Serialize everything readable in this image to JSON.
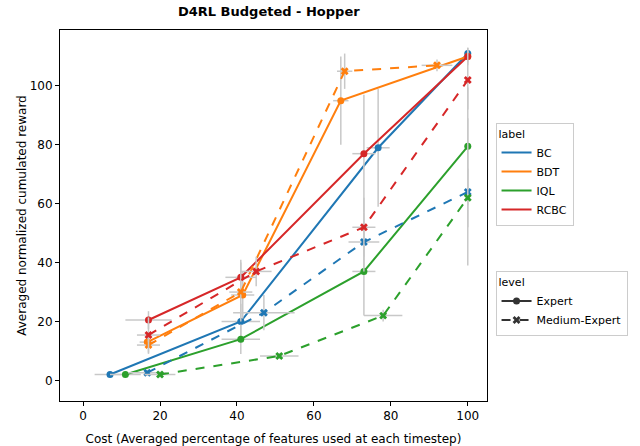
{
  "chart_data": {
    "type": "line",
    "title": "D4RL Budgeted - Hopper",
    "x_label": "Cost (Averaged percentage of features used at each timestep)",
    "y_label": "Averaged normalized cumulated reward",
    "xlim": [
      -6,
      105
    ],
    "ylim": [
      -7,
      119
    ],
    "xticks": [
      0,
      20,
      40,
      60,
      80,
      100
    ],
    "yticks": [
      0,
      20,
      40,
      60,
      80,
      100
    ],
    "grid": false,
    "legend_title": "label",
    "level_title": "level",
    "methods": [
      {
        "name": "BC",
        "color": "#1f77b4"
      },
      {
        "name": "BDT",
        "color": "#ff7f0e"
      },
      {
        "name": "IQL",
        "color": "#2ca02c"
      },
      {
        "name": "RCBC",
        "color": "#d62728"
      }
    ],
    "levels": [
      {
        "name": "Expert",
        "line_style": "solid",
        "marker": "circle"
      },
      {
        "name": "Medium-Expert",
        "line_style": "dash",
        "marker": "x"
      }
    ],
    "series": [
      {
        "name": "BC",
        "level": "Expert",
        "x": [
          7,
          41,
          76.7,
          100
        ],
        "values": [
          2,
          20,
          79,
          111
        ],
        "x_error": [
          4,
          5,
          3,
          0
        ],
        "y_error": [
          1,
          6,
          20,
          2
        ]
      },
      {
        "name": "BDT",
        "level": "Expert",
        "x": [
          16.7,
          41.5,
          67,
          100
        ],
        "values": [
          13,
          29,
          95,
          110
        ],
        "x_error": [
          2,
          3,
          2,
          0
        ],
        "y_error": [
          2,
          8,
          15,
          3
        ]
      },
      {
        "name": "IQL",
        "level": "Expert",
        "x": [
          11,
          41,
          73,
          100
        ],
        "values": [
          2,
          14,
          37,
          79.5
        ],
        "x_error": [
          4,
          5,
          3,
          0
        ],
        "y_error": [
          1,
          5,
          15,
          20
        ]
      },
      {
        "name": "RCBC",
        "level": "Expert",
        "x": [
          17,
          41,
          73,
          100
        ],
        "values": [
          20.5,
          35,
          77,
          110
        ],
        "x_error": [
          6,
          4,
          3,
          0
        ],
        "y_error": [
          3,
          6,
          20,
          2
        ]
      },
      {
        "name": "BC",
        "level": "Medium-Expert",
        "x": [
          16.7,
          47,
          73,
          100
        ],
        "values": [
          2.6,
          23,
          47,
          64
        ],
        "x_error": [
          5,
          8,
          4,
          0
        ],
        "y_error": [
          1,
          6,
          10,
          25
        ]
      },
      {
        "name": "BDT",
        "level": "Medium-Expert",
        "x": [
          17,
          41,
          68,
          92
        ],
        "values": [
          12,
          30,
          105,
          107
        ],
        "x_error": [
          3,
          3,
          2,
          4
        ],
        "y_error": [
          3,
          10,
          6,
          2
        ]
      },
      {
        "name": "IQL",
        "level": "Medium-Expert",
        "x": [
          20,
          51,
          78,
          100
        ],
        "values": [
          2,
          8.3,
          22,
          62
        ],
        "x_error": [
          4,
          5,
          5,
          0
        ],
        "y_error": [
          1,
          1,
          2,
          10
        ]
      },
      {
        "name": "RCBC",
        "level": "Medium-Expert",
        "x": [
          17,
          45,
          73,
          100
        ],
        "values": [
          15.4,
          37,
          52,
          102
        ],
        "x_error": [
          3,
          4,
          3,
          0
        ],
        "y_error": [
          6,
          5,
          10,
          10
        ]
      }
    ]
  }
}
